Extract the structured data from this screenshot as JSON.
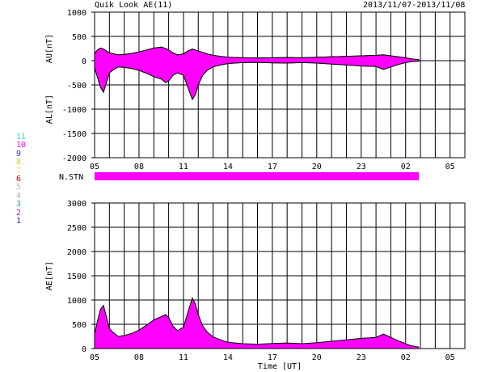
{
  "header": {
    "title": "Quik Look AE(11)",
    "date_range": "2013/11/07-2013/11/08"
  },
  "legend": {
    "items": [
      {
        "label": "11",
        "color": "#33cccc"
      },
      {
        "label": "10",
        "color": "#ff00ff"
      },
      {
        "label": "9",
        "color": "#3333cc"
      },
      {
        "label": "8",
        "color": "#cccc33"
      },
      {
        "label": "7",
        "color": "#f0e060"
      },
      {
        "label": "6",
        "color": "#e00000"
      },
      {
        "label": "5",
        "color": "#bbbbbb"
      },
      {
        "label": "4",
        "color": "#aaaaaa"
      },
      {
        "label": "3",
        "color": "#33aaaa"
      },
      {
        "label": "2",
        "color": "#aa22aa"
      },
      {
        "label": "1",
        "color": "#2222aa"
      }
    ]
  },
  "colors": {
    "fill": "#ff00ff",
    "grid": "#000000"
  },
  "chart_data": [
    {
      "type": "area",
      "ylabel_top": "AU[nT]",
      "ylabel_bottom": "AL[nT]",
      "ylim": [
        -2000,
        1000
      ],
      "yticks": [
        1000,
        500,
        0,
        -500,
        -1000,
        -1500,
        -2000
      ],
      "xlim": [
        5,
        30
      ],
      "xticks": [
        "05",
        "08",
        "11",
        "14",
        "17",
        "20",
        "23",
        "02",
        "05"
      ],
      "grid": true,
      "series": [
        {
          "x": [
            5.0,
            5.2,
            5.4,
            5.6,
            5.8,
            6.0,
            6.3,
            6.6,
            7.0,
            7.5,
            8.0,
            8.5,
            9.0,
            9.5,
            9.8,
            10.0,
            10.3,
            10.6,
            11.0,
            11.3,
            11.6,
            11.8,
            12.0,
            12.3,
            12.6,
            13.0,
            13.5,
            14.0,
            15.0,
            16.0,
            17.0,
            18.0,
            19.0,
            20.0,
            21.0,
            22.0,
            23.0,
            24.0,
            24.5,
            25.0,
            25.5,
            26.0,
            26.3,
            26.6,
            26.9
          ],
          "au": [
            150,
            220,
            260,
            240,
            200,
            160,
            140,
            120,
            130,
            150,
            180,
            220,
            260,
            280,
            250,
            220,
            160,
            120,
            140,
            200,
            240,
            220,
            200,
            170,
            140,
            110,
            90,
            70,
            60,
            55,
            60,
            65,
            60,
            70,
            80,
            90,
            100,
            110,
            120,
            100,
            80,
            60,
            40,
            30,
            20
          ],
          "al": [
            -150,
            -350,
            -550,
            -650,
            -450,
            -250,
            -180,
            -130,
            -140,
            -160,
            -200,
            -260,
            -330,
            -380,
            -450,
            -420,
            -300,
            -250,
            -300,
            -550,
            -800,
            -700,
            -500,
            -300,
            -200,
            -130,
            -90,
            -60,
            -40,
            -35,
            -45,
            -50,
            -40,
            -50,
            -70,
            -90,
            -110,
            -120,
            -180,
            -130,
            -80,
            -40,
            -25,
            -15,
            -10
          ]
        }
      ]
    },
    {
      "type": "bar",
      "label": "N.STN",
      "x_start": 5,
      "x_end": 26.9
    },
    {
      "type": "area",
      "ylabel": "AE[nT]",
      "xlabel": "Time [UT]",
      "ylim": [
        0,
        3000
      ],
      "yticks": [
        3000,
        2500,
        2000,
        1500,
        1000,
        500,
        0
      ],
      "xlim": [
        5,
        30
      ],
      "xticks": [
        "05",
        "08",
        "11",
        "14",
        "17",
        "20",
        "23",
        "02",
        "05"
      ],
      "grid": true,
      "series": [
        {
          "x": [
            5.0,
            5.2,
            5.4,
            5.6,
            5.8,
            6.0,
            6.3,
            6.6,
            7.0,
            7.5,
            8.0,
            8.5,
            9.0,
            9.5,
            9.8,
            10.0,
            10.3,
            10.6,
            11.0,
            11.3,
            11.6,
            11.8,
            12.0,
            12.3,
            12.6,
            13.0,
            13.5,
            14.0,
            15.0,
            16.0,
            17.0,
            18.0,
            19.0,
            20.0,
            21.0,
            22.0,
            23.0,
            24.0,
            24.5,
            25.0,
            25.5,
            26.0,
            26.3,
            26.6,
            26.9
          ],
          "ae": [
            300,
            570,
            810,
            890,
            650,
            410,
            320,
            250,
            270,
            310,
            380,
            480,
            590,
            660,
            700,
            640,
            460,
            370,
            440,
            750,
            1040,
            920,
            700,
            470,
            340,
            240,
            180,
            130,
            100,
            90,
            105,
            115,
            100,
            120,
            150,
            180,
            210,
            230,
            300,
            230,
            160,
            100,
            65,
            45,
            30
          ]
        }
      ]
    }
  ]
}
